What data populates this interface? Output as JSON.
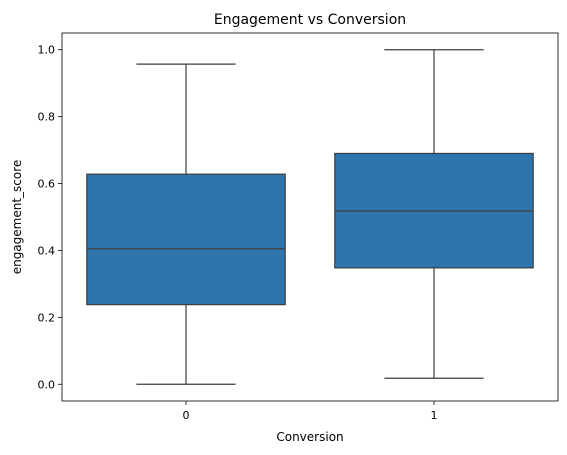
{
  "chart_data": {
    "type": "box",
    "title": "Engagement vs Conversion",
    "xlabel": "Conversion",
    "ylabel": "engagement_score",
    "categories": [
      "0",
      "1"
    ],
    "ylim": [
      -0.05,
      1.05
    ],
    "yticks": [
      0.0,
      0.2,
      0.4,
      0.6,
      0.8,
      1.0
    ],
    "ytick_labels": [
      "0.0",
      "0.2",
      "0.4",
      "0.6",
      "0.8",
      "1.0"
    ],
    "grid": false,
    "boxes": [
      {
        "category": "0",
        "whisker_low": 0.0,
        "q1": 0.238,
        "median": 0.405,
        "q3": 0.628,
        "whisker_high": 0.957
      },
      {
        "category": "1",
        "whisker_low": 0.018,
        "q1": 0.348,
        "median": 0.518,
        "q3": 0.69,
        "whisker_high": 1.0
      }
    ],
    "box_color": "#2e75ae",
    "line_color": "#3d3d3d"
  }
}
